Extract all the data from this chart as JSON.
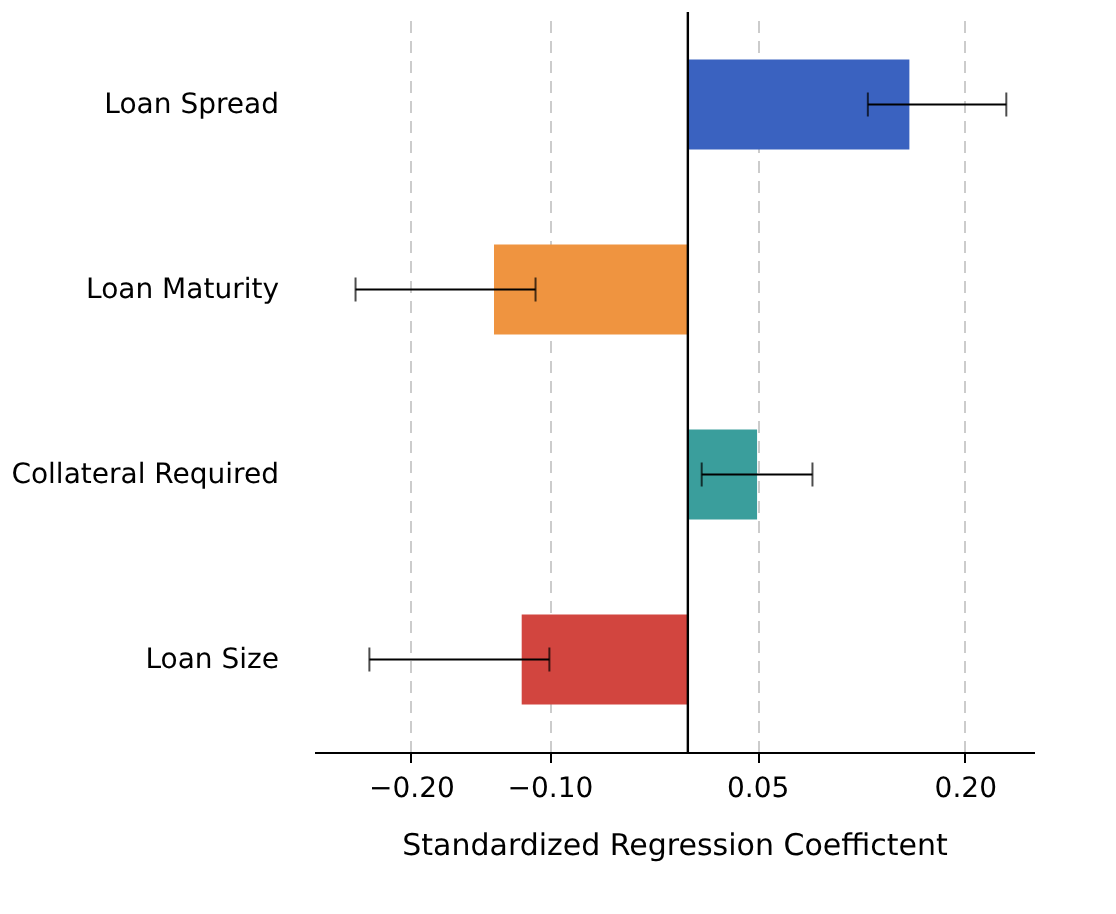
{
  "chart_data": {
    "type": "bar",
    "orientation": "horizontal",
    "xlabel": "Standardized Regression Coeffictent",
    "categories": [
      "Loan Spread",
      "Loan Maturity",
      "Collateral Required",
      "Loan Size"
    ],
    "values": [
      0.16,
      -0.14,
      0.05,
      -0.12
    ],
    "colors": [
      "#3a62c0",
      "#ef9440",
      "#3a9e9c",
      "#d2453f"
    ],
    "errors": [
      [
        0.13,
        0.23
      ],
      [
        -0.24,
        -0.11
      ],
      [
        0.01,
        0.09
      ],
      [
        -0.23,
        -0.1
      ]
    ],
    "xlim": [
      -0.27,
      0.25
    ],
    "xticks": [
      {
        "value": -0.2,
        "label": "−0.20"
      },
      {
        "value": -0.1,
        "label": "−0.10"
      },
      0.05,
      {
        "value": 0.2,
        "label": "0.20"
      }
    ],
    "grid": "x",
    "ref_lines": [
      {
        "axis": "x",
        "value": 0,
        "color": "#000000"
      }
    ]
  }
}
